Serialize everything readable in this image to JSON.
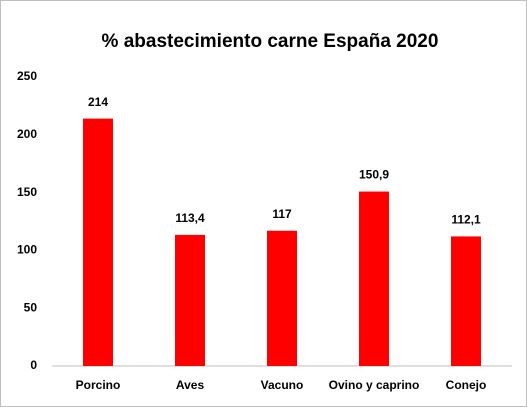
{
  "chart_data": {
    "type": "bar",
    "title": "% abastecimiento carne España 2020",
    "categories": [
      "Porcino",
      "Aves",
      "Vacuno",
      "Ovino y caprino",
      "Conejo"
    ],
    "values": [
      214,
      113.4,
      117,
      150.9,
      112.1
    ],
    "value_labels": [
      "214",
      "113,4",
      "117",
      "150,9",
      "112,1"
    ],
    "color": "#ff0000",
    "ylim": [
      0,
      250
    ],
    "yticks": [
      0,
      50,
      100,
      150,
      200,
      250
    ],
    "grid": false
  }
}
